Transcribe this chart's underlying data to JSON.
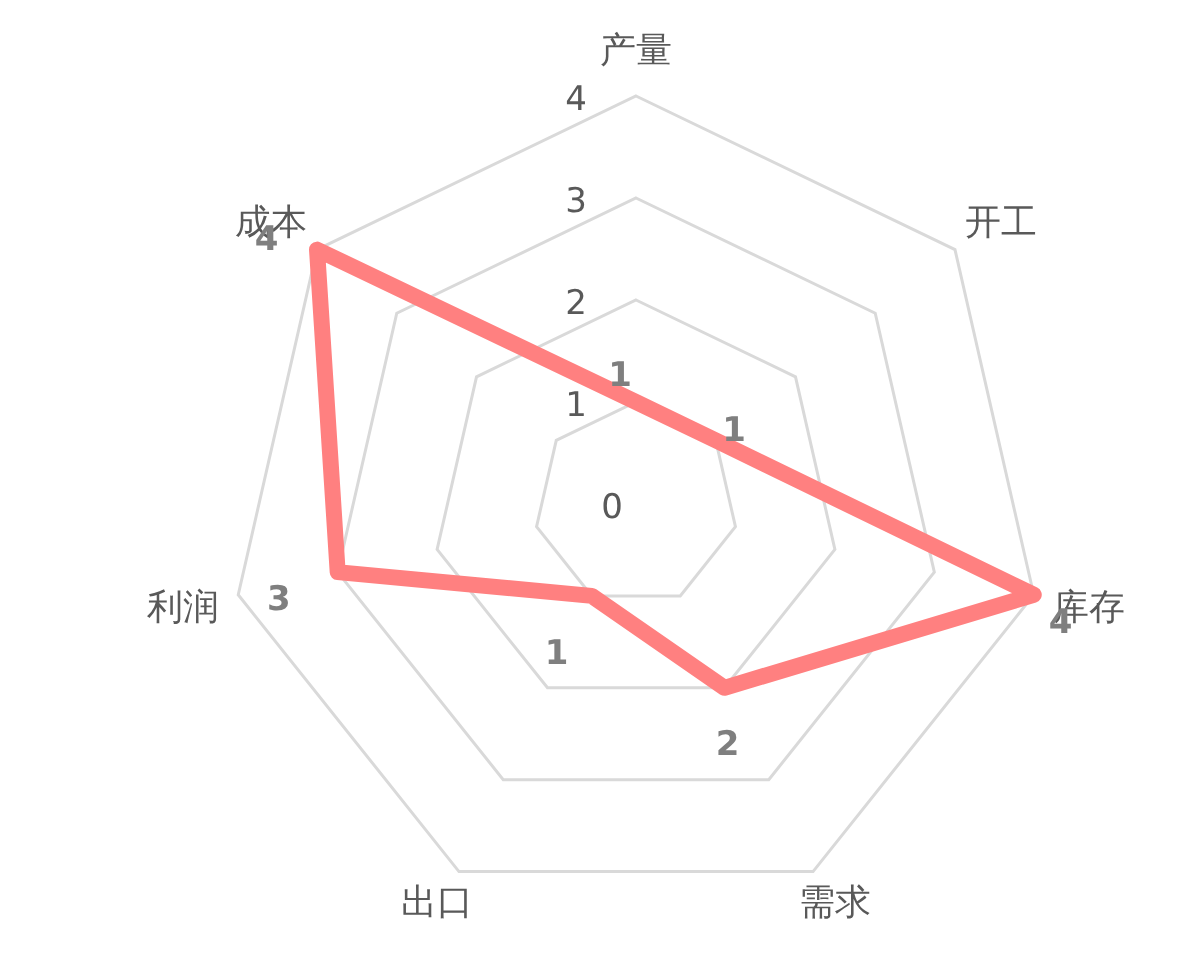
{
  "chart_data": {
    "type": "radar",
    "categories": [
      "产量",
      "开工",
      "库存",
      "需求",
      "出口",
      "利润",
      "成本"
    ],
    "series": [
      {
        "color": "#ff8080",
        "values": [
          1,
          1,
          4,
          2,
          1,
          3,
          4
        ]
      }
    ],
    "ylim": [
      0,
      4
    ],
    "yticks": [
      0,
      1,
      2,
      3,
      4
    ],
    "grid": true,
    "data_labels": true
  }
}
